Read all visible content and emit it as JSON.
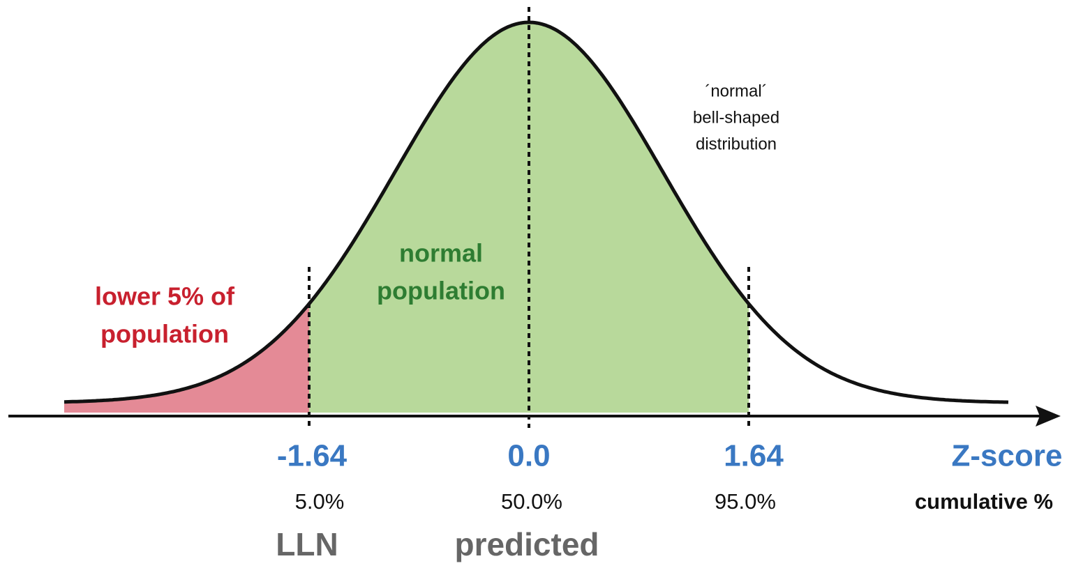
{
  "annotations": {
    "lower_tail": [
      "lower 5% of",
      "population"
    ],
    "normal": [
      "normal",
      "population"
    ],
    "distribution": [
      "´normal´",
      "bell-shaped",
      "distribution"
    ]
  },
  "markers": [
    {
      "z": "-1.64",
      "cumulative": "5.0%",
      "label": "LLN"
    },
    {
      "z": "0.0",
      "cumulative": "50.0%",
      "label": "predicted"
    },
    {
      "z": "1.64",
      "cumulative": "95.0%"
    }
  ],
  "axis": {
    "z_label": "Z-score",
    "cumulative_label": "cumulative %"
  }
}
